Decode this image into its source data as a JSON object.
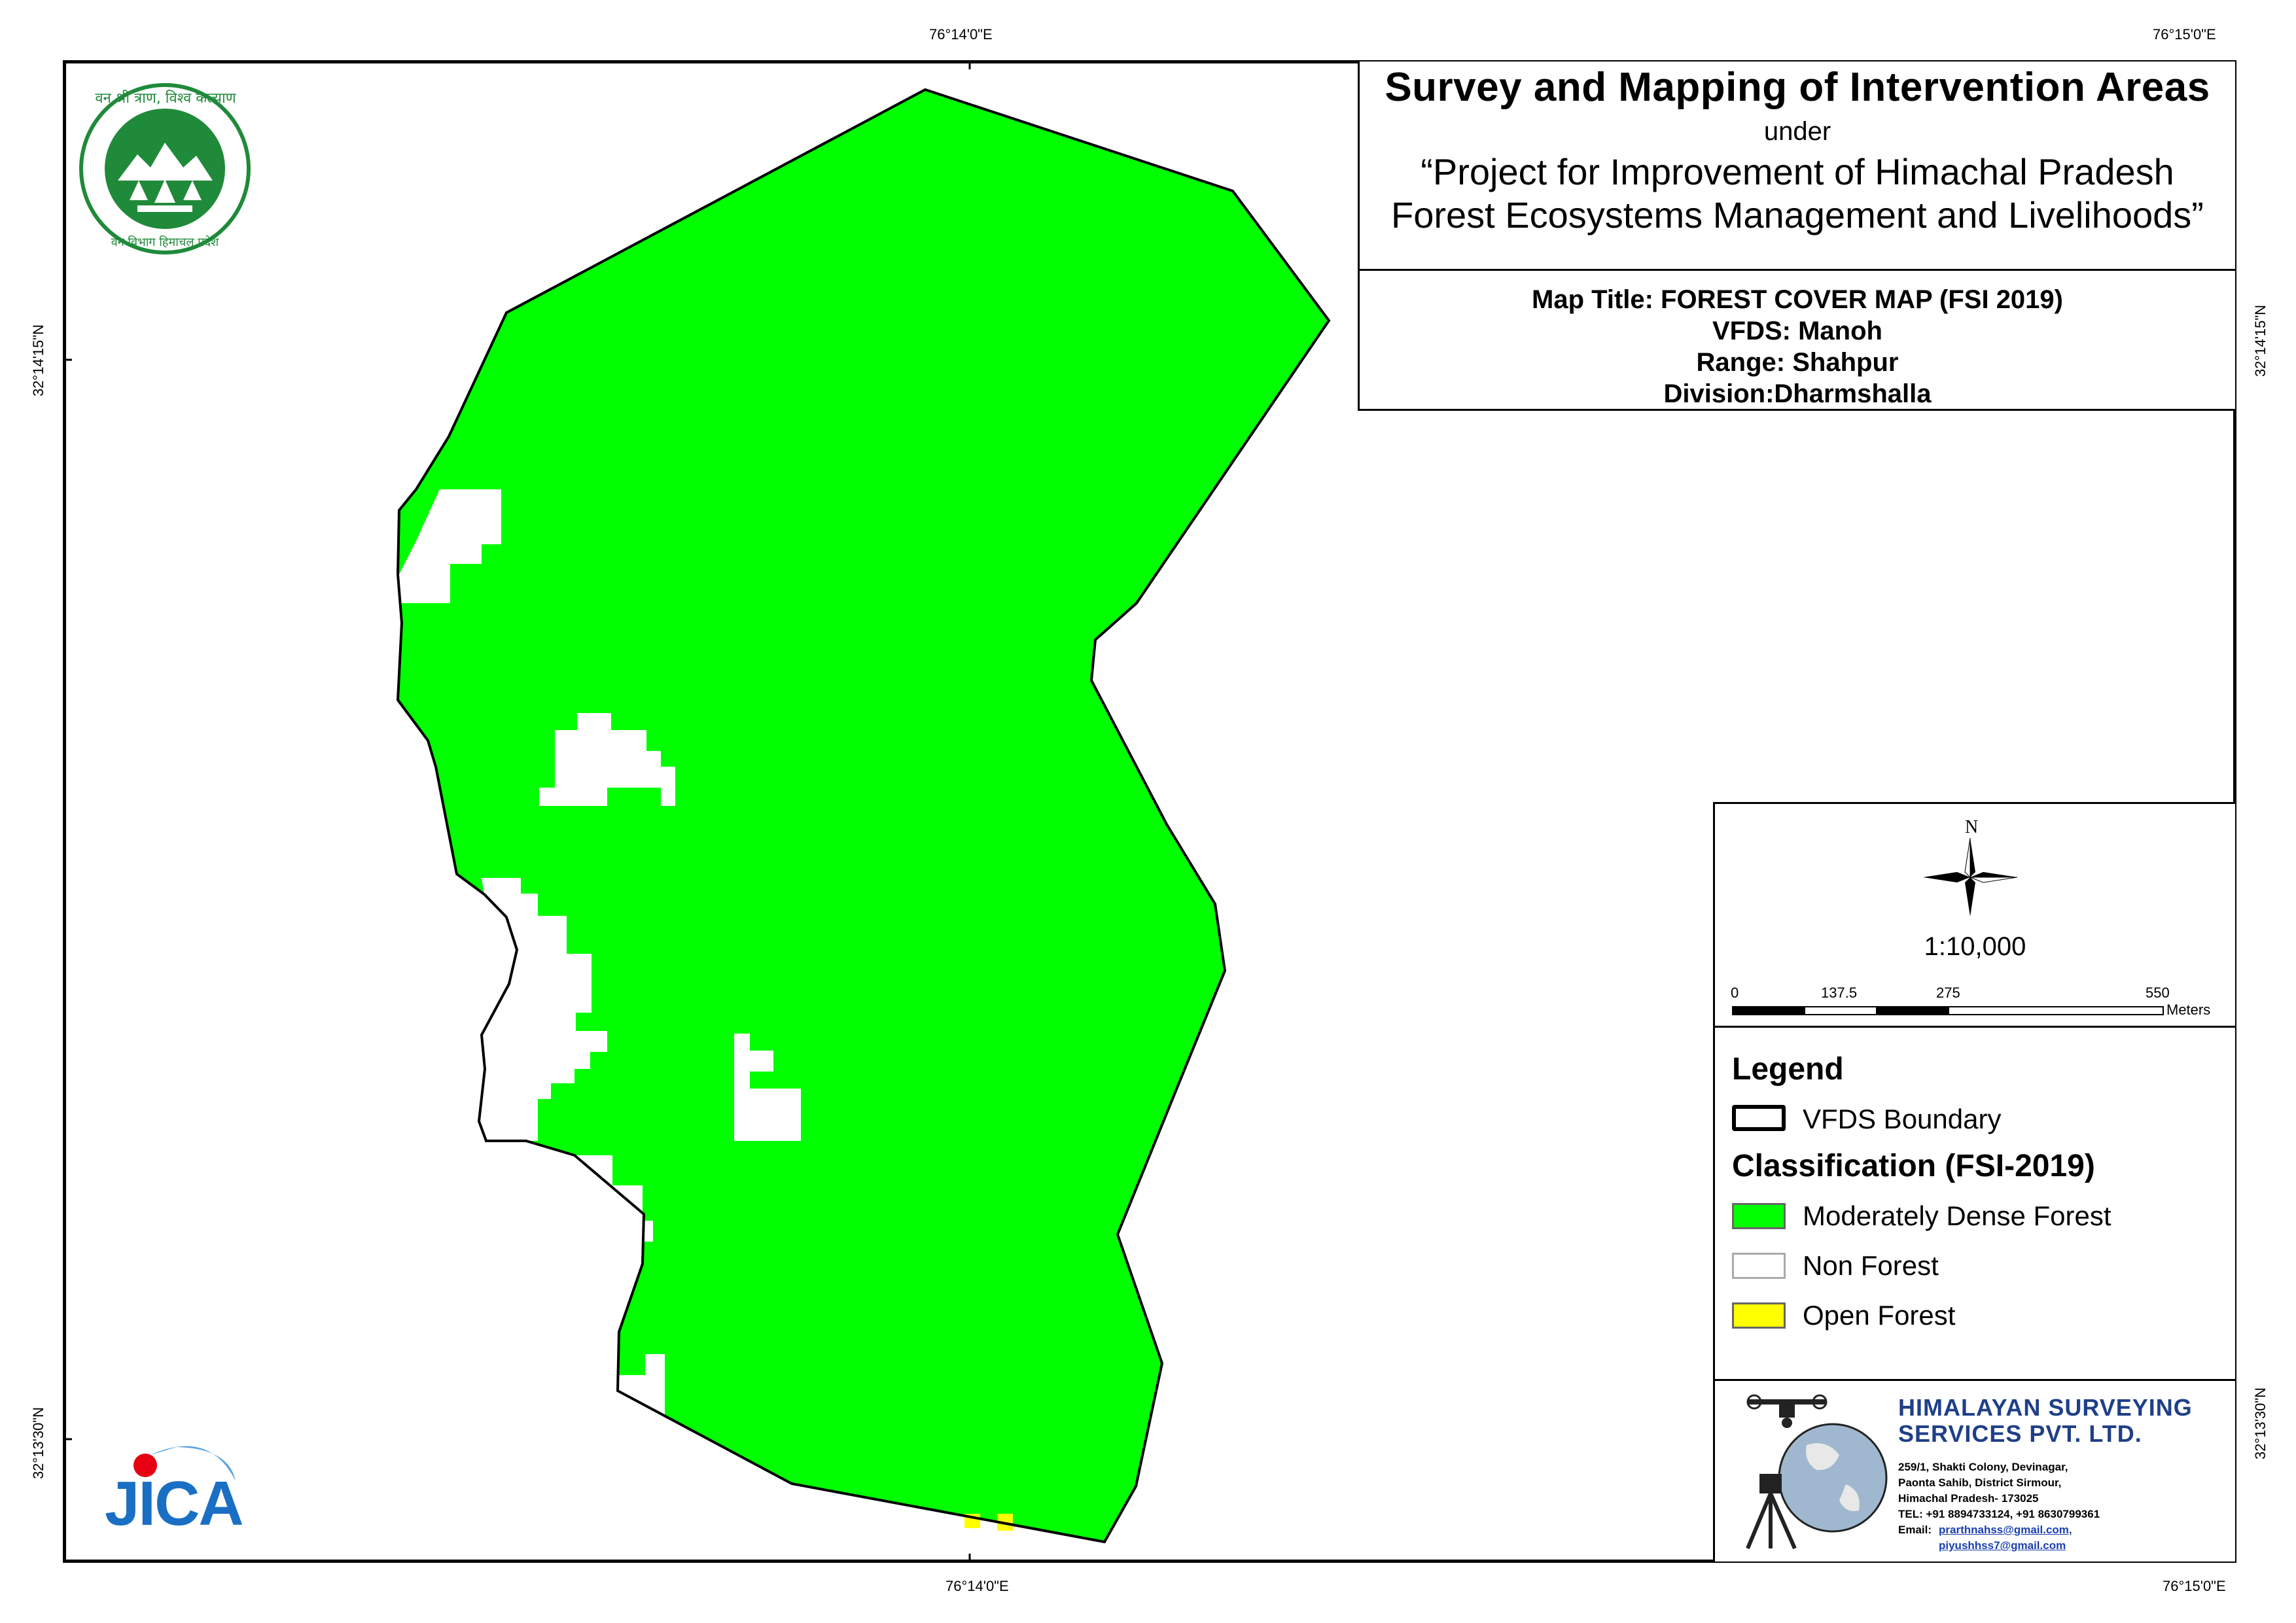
{
  "map": {
    "coordinates": {
      "top_left": "76°14'0\"E",
      "top_right": "76°15'0\"E",
      "bottom_left": "76°14'0\"E",
      "bottom_right": "76°15'0\"E",
      "left_top": "32°14'15\"N",
      "left_bottom": "32°13'30\"N",
      "right_top": "32°14'15\"N",
      "right_bottom": "32°13'30\"N"
    },
    "colors": {
      "moderately_dense_forest": "#00ff00",
      "non_forest": "#ffffff",
      "open_forest": "#ffff00",
      "boundary": "#000000"
    }
  },
  "header": {
    "title": "Survey and Mapping of Intervention Areas",
    "under": "under",
    "project_line1": "“Project for Improvement of Himachal Pradesh",
    "project_line2": "Forest Ecosystems Management and Livelihoods”"
  },
  "info": {
    "map_title": "Map Title: FOREST COVER MAP (FSI 2019)",
    "vfds": "VFDS: Manoh",
    "range": "Range: Shahpur",
    "division": "Division:Dharmshalla"
  },
  "scale": {
    "north": "N",
    "ratio": "1:10,000",
    "ticks": [
      "0",
      "137.5",
      "275",
      "550"
    ],
    "unit": "Meters"
  },
  "legend": {
    "title": "Legend",
    "boundary_label": "VFDS Boundary",
    "classification_title": "Classification (FSI-2019)",
    "items": [
      {
        "label": "Moderately Dense Forest",
        "color": "#00ff00"
      },
      {
        "label": "Non Forest",
        "color": "#ffffff"
      },
      {
        "label": "Open Forest",
        "color": "#ffff00"
      }
    ]
  },
  "company": {
    "name_line1": "HIMALAYAN SURVEYING",
    "name_line2": "SERVICES PVT. LTD.",
    "address1": "259/1, Shakti Colony, Devinagar,",
    "address2": "Paonta Sahib, District Sirmour,",
    "address3": "Himachal Pradesh- 173025",
    "phone": "TEL: +91 8894733124, +91 8630799361",
    "email_label": "Email:",
    "email1": "prarthnahss@gmail.com,",
    "email2": "piyushhss7@gmail.com"
  },
  "logos": {
    "forest_dept_text_top": "वन श्री त्राण, विश्व कल्याण",
    "forest_dept_text_bottom": "वन विभाग हिमाचल प्रदेश",
    "jica": "JICA"
  }
}
